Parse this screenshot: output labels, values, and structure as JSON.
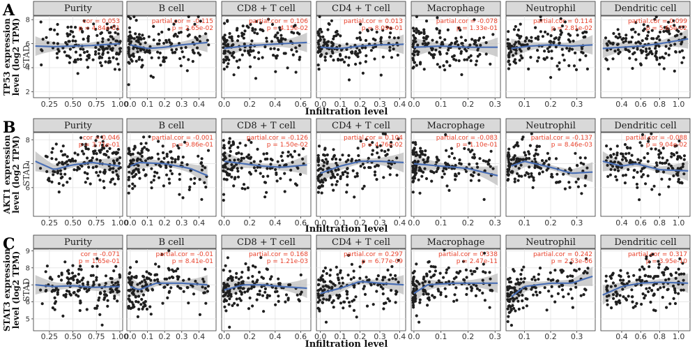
{
  "figure": {
    "xlabel": "Infiltration level",
    "tumor_label": "STAD",
    "colors": {
      "points": "#1f1f1f",
      "smooth": "#4a6fb5",
      "ci": "#bdbdbd",
      "stat": "#e8412b",
      "strip": "#d9d9d9"
    }
  },
  "chart_data": [
    {
      "type": "scatter",
      "panel_letter": "A",
      "ylabel": [
        "TP53 expression",
        "level (log2 TPM)"
      ],
      "ylim": [
        1.5,
        8.3
      ],
      "yticks": [
        2,
        4,
        6,
        8
      ],
      "facets": [
        {
          "name": "Purity",
          "stat_label": "cor",
          "cor": "0.053",
          "p": "4.84e-01",
          "xlim": [
            0.08,
            1.03
          ],
          "xticks": [
            "0.25",
            "0.50",
            "0.75",
            "1.00"
          ],
          "xtick_values": [
            0.25,
            0.5,
            0.75,
            1.0
          ],
          "smooth": [
            [
              0.1,
              5.8
            ],
            [
              0.3,
              5.75
            ],
            [
              0.5,
              5.8
            ],
            [
              0.7,
              5.85
            ],
            [
              1.0,
              6.0
            ]
          ]
        },
        {
          "name": "B cell",
          "stat_label": "partial.cor",
          "cor": "-0.115",
          "p": "2.65e-02",
          "xlim": [
            -0.02,
            0.5
          ],
          "xticks": [
            "0.0",
            "0.1",
            "0.2",
            "0.3",
            "0.4"
          ],
          "xtick_values": [
            0.0,
            0.1,
            0.2,
            0.3,
            0.4
          ],
          "smooth": [
            [
              0.0,
              5.9
            ],
            [
              0.1,
              5.6
            ],
            [
              0.2,
              5.7
            ],
            [
              0.3,
              5.9
            ],
            [
              0.45,
              6.1
            ]
          ]
        },
        {
          "name": "CD8 + T cell",
          "stat_label": "partial.cor",
          "cor": "0.106",
          "p": "4.15e-02",
          "xlim": [
            -0.02,
            0.68
          ],
          "xticks": [
            "0.0",
            "0.2",
            "0.4",
            "0.6"
          ],
          "xtick_values": [
            0.0,
            0.2,
            0.4,
            0.6
          ],
          "smooth": [
            [
              0.0,
              5.6
            ],
            [
              0.15,
              5.8
            ],
            [
              0.3,
              5.9
            ],
            [
              0.45,
              6.0
            ],
            [
              0.65,
              6.1
            ]
          ]
        },
        {
          "name": "CD4 + T cell",
          "stat_label": "partial.cor",
          "cor": "0.013",
          "p": "8.09e-01",
          "xlim": [
            -0.02,
            0.43
          ],
          "xticks": [
            "0.0",
            "0.1",
            "0.2",
            "0.3",
            "0.4"
          ],
          "xtick_values": [
            0.0,
            0.1,
            0.2,
            0.3,
            0.4
          ],
          "smooth": [
            [
              0.0,
              5.7
            ],
            [
              0.1,
              5.6
            ],
            [
              0.2,
              5.8
            ],
            [
              0.3,
              5.9
            ],
            [
              0.42,
              5.95
            ]
          ]
        },
        {
          "name": "Macrophage",
          "stat_label": "partial.cor",
          "cor": "-0.078",
          "p": "1.33e-01",
          "xlim": [
            -0.01,
            0.32
          ],
          "xticks": [
            "0.0",
            "0.1",
            "0.2",
            "0.3"
          ],
          "xtick_values": [
            0.0,
            0.1,
            0.2,
            0.3
          ],
          "smooth": [
            [
              0.0,
              5.7
            ],
            [
              0.1,
              5.8
            ],
            [
              0.2,
              5.7
            ],
            [
              0.31,
              5.7
            ]
          ]
        },
        {
          "name": "Neutrophil",
          "stat_label": "partial.cor",
          "cor": "0.114",
          "p": "2.81e-02",
          "xlim": [
            0.03,
            0.37
          ],
          "xticks": [
            "0.1",
            "0.2",
            "0.3"
          ],
          "xtick_values": [
            0.1,
            0.2,
            0.3
          ],
          "smooth": [
            [
              0.05,
              5.6
            ],
            [
              0.12,
              5.8
            ],
            [
              0.2,
              5.9
            ],
            [
              0.28,
              5.8
            ],
            [
              0.36,
              5.9
            ]
          ]
        },
        {
          "name": "Dendritic cell",
          "stat_label": "partial.cor",
          "cor": "0.099",
          "p": "5.65e-02",
          "xlim": [
            0.18,
            1.12
          ],
          "xticks": [
            "0.4",
            "0.6",
            "0.8",
            "1.0"
          ],
          "xtick_values": [
            0.4,
            0.6,
            0.8,
            1.0
          ],
          "smooth": [
            [
              0.2,
              5.6
            ],
            [
              0.4,
              5.7
            ],
            [
              0.6,
              5.8
            ],
            [
              0.8,
              6.0
            ],
            [
              1.1,
              6.4
            ]
          ]
        }
      ]
    },
    {
      "type": "scatter",
      "panel_letter": "B",
      "ylabel": [
        "AKT1 expression",
        "level (log2 TPM)"
      ],
      "ylim": [
        4.8,
        8.3
      ],
      "yticks": [
        6,
        7,
        8
      ],
      "facets": [
        {
          "name": "Purity",
          "stat_label": "cor",
          "cor": "0.046",
          "p": "3.71e-01",
          "xlim": [
            0.08,
            1.03
          ],
          "xticks": [
            "0.25",
            "0.50",
            "0.75",
            "1.00"
          ],
          "xtick_values": [
            0.25,
            0.5,
            0.75,
            1.0
          ],
          "smooth": [
            [
              0.1,
              7.1
            ],
            [
              0.3,
              6.75
            ],
            [
              0.5,
              6.95
            ],
            [
              0.7,
              7.05
            ],
            [
              1.0,
              6.9
            ]
          ]
        },
        {
          "name": "B cell",
          "stat_label": "partial.cor",
          "cor": "-0.001",
          "p": "9.86e-01",
          "xlim": [
            -0.02,
            0.5
          ],
          "xticks": [
            "0.0",
            "0.1",
            "0.2",
            "0.3",
            "0.4"
          ],
          "xtick_values": [
            0.0,
            0.1,
            0.2,
            0.3,
            0.4
          ],
          "smooth": [
            [
              0.0,
              6.9
            ],
            [
              0.05,
              7.05
            ],
            [
              0.2,
              7.0
            ],
            [
              0.35,
              6.8
            ],
            [
              0.45,
              6.5
            ]
          ]
        },
        {
          "name": "CD8 + T cell",
          "stat_label": "partial.cor",
          "cor": "-0.126",
          "p": "1.50e-02",
          "xlim": [
            -0.02,
            0.68
          ],
          "xticks": [
            "0.0",
            "0.2",
            "0.4",
            "0.6"
          ],
          "xtick_values": [
            0.0,
            0.2,
            0.4,
            0.6
          ],
          "smooth": [
            [
              0.0,
              7.1
            ],
            [
              0.15,
              7.0
            ],
            [
              0.3,
              6.9
            ],
            [
              0.45,
              6.85
            ],
            [
              0.65,
              6.95
            ]
          ]
        },
        {
          "name": "CD4 + T cell",
          "stat_label": "partial.cor",
          "cor": "0.104",
          "p": "4.76e-02",
          "xlim": [
            -0.02,
            0.43
          ],
          "xticks": [
            "0.0",
            "0.1",
            "0.2",
            "0.3",
            "0.4"
          ],
          "xtick_values": [
            0.0,
            0.1,
            0.2,
            0.3,
            0.4
          ],
          "smooth": [
            [
              0.0,
              6.6
            ],
            [
              0.1,
              6.9
            ],
            [
              0.2,
              7.1
            ],
            [
              0.3,
              7.1
            ],
            [
              0.42,
              7.05
            ]
          ]
        },
        {
          "name": "Macrophage",
          "stat_label": "partial.cor",
          "cor": "-0.083",
          "p": "1.10e-01",
          "xlim": [
            -0.01,
            0.32
          ],
          "xticks": [
            "0.0",
            "0.1",
            "0.2",
            "0.3"
          ],
          "xtick_values": [
            0.0,
            0.1,
            0.2,
            0.3
          ],
          "smooth": [
            [
              0.0,
              7.0
            ],
            [
              0.1,
              6.9
            ],
            [
              0.2,
              6.8
            ],
            [
              0.31,
              6.5
            ]
          ]
        },
        {
          "name": "Neutrophil",
          "stat_label": "partial.cor",
          "cor": "-0.137",
          "p": "8.46e-03",
          "xlim": [
            0.03,
            0.37
          ],
          "xticks": [
            "0.1",
            "0.2",
            "0.3"
          ],
          "xtick_values": [
            0.1,
            0.2,
            0.3
          ],
          "smooth": [
            [
              0.05,
              6.9
            ],
            [
              0.1,
              7.1
            ],
            [
              0.2,
              6.85
            ],
            [
              0.28,
              6.6
            ],
            [
              0.36,
              6.65
            ]
          ]
        },
        {
          "name": "Dendritic cell",
          "stat_label": "partial.cor",
          "cor": "-0.088",
          "p": "9.04e-02",
          "xlim": [
            0.18,
            1.12
          ],
          "xticks": [
            "0.4",
            "0.6",
            "0.8",
            "1.0"
          ],
          "xtick_values": [
            0.4,
            0.6,
            0.8,
            1.0
          ],
          "smooth": [
            [
              0.2,
              7.1
            ],
            [
              0.4,
              6.9
            ],
            [
              0.55,
              7.0
            ],
            [
              0.8,
              6.75
            ],
            [
              1.1,
              6.7
            ]
          ]
        }
      ]
    },
    {
      "type": "scatter",
      "panel_letter": "C",
      "ylabel": [
        "STAT3 expression",
        "level (log2 TPM)"
      ],
      "ylim": [
        4.3,
        9.1
      ],
      "yticks": [
        5,
        6,
        7,
        8,
        9
      ],
      "facets": [
        {
          "name": "Purity",
          "stat_label": "cor",
          "cor": "-0.071",
          "p": "1.65e-01",
          "xlim": [
            0.08,
            1.03
          ],
          "xticks": [
            "0.25",
            "0.50",
            "0.75",
            "1.00"
          ],
          "xtick_values": [
            0.25,
            0.5,
            0.75,
            1.0
          ],
          "smooth": [
            [
              0.1,
              7.0
            ],
            [
              0.3,
              6.9
            ],
            [
              0.5,
              6.95
            ],
            [
              0.7,
              6.85
            ],
            [
              1.0,
              6.9
            ]
          ]
        },
        {
          "name": "B cell",
          "stat_label": "partial.cor",
          "cor": "-0.01",
          "p": "8.41e-01",
          "xlim": [
            -0.02,
            0.5
          ],
          "xticks": [
            "0.0",
            "0.1",
            "0.2",
            "0.3",
            "0.4"
          ],
          "xtick_values": [
            0.0,
            0.1,
            0.2,
            0.3,
            0.4
          ],
          "smooth": [
            [
              0.0,
              6.9
            ],
            [
              0.05,
              6.7
            ],
            [
              0.15,
              7.1
            ],
            [
              0.3,
              7.1
            ],
            [
              0.45,
              7.0
            ]
          ]
        },
        {
          "name": "CD8 + T cell",
          "stat_label": "partial.cor",
          "cor": "0.168",
          "p": "1.21e-03",
          "xlim": [
            -0.02,
            0.68
          ],
          "xticks": [
            "0.0",
            "0.2",
            "0.4",
            "0.6"
          ],
          "xtick_values": [
            0.0,
            0.2,
            0.4,
            0.6
          ],
          "smooth": [
            [
              0.0,
              6.7
            ],
            [
              0.15,
              7.0
            ],
            [
              0.3,
              7.0
            ],
            [
              0.45,
              6.9
            ],
            [
              0.65,
              6.8
            ]
          ]
        },
        {
          "name": "CD4 + T cell",
          "stat_label": "partial.cor",
          "cor": "0.297",
          "p": "6.77e-09",
          "xlim": [
            -0.02,
            0.43
          ],
          "xticks": [
            "0.0",
            "0.1",
            "0.2",
            "0.3",
            "0.4"
          ],
          "xtick_values": [
            0.0,
            0.1,
            0.2,
            0.3,
            0.4
          ],
          "smooth": [
            [
              0.0,
              6.5
            ],
            [
              0.1,
              6.8
            ],
            [
              0.2,
              7.2
            ],
            [
              0.3,
              7.1
            ],
            [
              0.42,
              7.0
            ]
          ]
        },
        {
          "name": "Macrophage",
          "stat_label": "partial.cor",
          "cor": "0.338",
          "p": "2.47e-11",
          "xlim": [
            -0.01,
            0.32
          ],
          "xticks": [
            "0.0",
            "0.1",
            "0.2",
            "0.3"
          ],
          "xtick_values": [
            0.0,
            0.1,
            0.2,
            0.3
          ],
          "smooth": [
            [
              0.0,
              6.5
            ],
            [
              0.05,
              7.0
            ],
            [
              0.15,
              7.1
            ],
            [
              0.31,
              7.1
            ]
          ]
        },
        {
          "name": "Neutrophil",
          "stat_label": "partial.cor",
          "cor": "0.242",
          "p": "2.53e-06",
          "xlim": [
            0.03,
            0.37
          ],
          "xticks": [
            "0.1",
            "0.2",
            "0.3"
          ],
          "xtick_values": [
            0.1,
            0.2,
            0.3
          ],
          "smooth": [
            [
              0.05,
              6.3
            ],
            [
              0.1,
              6.9
            ],
            [
              0.2,
              7.1
            ],
            [
              0.28,
              7.1
            ],
            [
              0.36,
              7.5
            ]
          ]
        },
        {
          "name": "Dendritic cell",
          "stat_label": "partial.cor",
          "cor": "0.317",
          "p": "3.95e-10",
          "xlim": [
            0.18,
            1.12
          ],
          "xticks": [
            "0.4",
            "0.6",
            "0.8",
            "1.0"
          ],
          "xtick_values": [
            0.4,
            0.6,
            0.8,
            1.0
          ],
          "smooth": [
            [
              0.2,
              6.4
            ],
            [
              0.4,
              6.9
            ],
            [
              0.6,
              7.1
            ],
            [
              0.8,
              7.15
            ],
            [
              1.1,
              7.1
            ]
          ]
        }
      ]
    }
  ]
}
